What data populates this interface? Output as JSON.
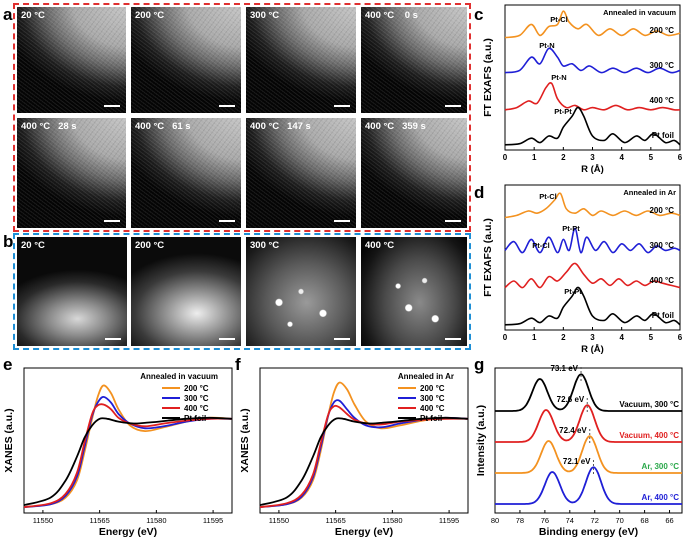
{
  "panels": {
    "a": "a",
    "b": "b",
    "c": "c",
    "d": "d",
    "e": "e",
    "f": "f",
    "g": "g"
  },
  "panel_a_labels": [
    "20 °C",
    "200 °C",
    "300 °C",
    "400 °C    0 s",
    "400 °C   28 s",
    "400 °C   61 s",
    "400 °C   147 s",
    "400 °C   359 s"
  ],
  "panel_b_labels": [
    "20 °C",
    "200 °C",
    "300 °C",
    "400 °C"
  ],
  "colors": {
    "orange": "#f39220",
    "blue": "#1f1fd6",
    "red": "#e02020",
    "black": "#000000",
    "green": "#2aa84a",
    "red_dash": "#e03030",
    "blue_dash": "#1d8fd6"
  },
  "chart_data": [
    {
      "id": "c",
      "type": "line",
      "title": "Annealed in vacuum",
      "xlabel": "R (Å)",
      "ylabel": "FT EXAFS (a.u.)",
      "xlim": [
        0,
        6
      ],
      "xticks": [
        "0",
        "1",
        "2",
        "3",
        "4",
        "5",
        "6"
      ],
      "series": [
        {
          "name": "200 °C",
          "color": "#f39220",
          "x": [
            0,
            0.5,
            0.9,
            1.2,
            1.5,
            1.8,
            2.0,
            2.2,
            2.5,
            2.8,
            3.2,
            3.6,
            4.0,
            4.4,
            4.8,
            5.2,
            5.6,
            6.0
          ],
          "y": [
            0.2,
            0.3,
            0.8,
            0.3,
            0.7,
            0.8,
            1.4,
            0.9,
            0.6,
            0.8,
            0.3,
            0.6,
            0.3,
            0.6,
            0.3,
            0.5,
            0.3,
            0.4
          ]
        },
        {
          "name": "300 °C",
          "color": "#1f1fd6",
          "x": [
            0,
            0.5,
            0.9,
            1.2,
            1.5,
            1.8,
            2.0,
            2.3,
            2.6,
            2.9,
            3.3,
            3.7,
            4.1,
            4.5,
            4.9,
            5.3,
            5.7,
            6.0
          ],
          "y": [
            0.2,
            0.3,
            0.9,
            0.6,
            1.3,
            0.9,
            0.5,
            0.6,
            0.3,
            0.5,
            0.2,
            0.4,
            0.2,
            0.4,
            0.2,
            0.4,
            0.2,
            0.3
          ]
        },
        {
          "name": "400 °C",
          "color": "#e02020",
          "x": [
            0,
            0.4,
            0.8,
            1.1,
            1.4,
            1.6,
            1.8,
            2.1,
            2.4,
            2.7,
            3.0,
            3.4,
            3.8,
            4.2,
            4.6,
            5.0,
            5.4,
            5.8,
            6.0
          ],
          "y": [
            0.1,
            0.2,
            0.5,
            0.4,
            1.1,
            1.3,
            0.6,
            0.2,
            0.3,
            0.1,
            0.2,
            0.1,
            0.3,
            0.1,
            0.2,
            0.1,
            0.2,
            0.1,
            0.1
          ]
        },
        {
          "name": "Pt foil",
          "color": "#000000",
          "x": [
            0,
            0.5,
            0.9,
            1.2,
            1.5,
            1.8,
            2.0,
            2.3,
            2.5,
            2.7,
            3.0,
            3.4,
            3.7,
            4.1,
            4.5,
            4.8,
            5.1,
            5.5,
            5.8,
            6.0
          ],
          "y": [
            0.1,
            0.15,
            0.4,
            0.2,
            0.5,
            0.4,
            0.9,
            1.4,
            1.8,
            1.4,
            0.5,
            0.3,
            0.6,
            0.2,
            0.5,
            0.3,
            0.6,
            0.2,
            0.3,
            0.1
          ]
        }
      ],
      "annotations": [
        "Pt-Cl",
        "Pt-N",
        "Pt-N",
        "Pt-Pt"
      ],
      "curve_labels": [
        "200 °C",
        "300 °C",
        "400 °C",
        "Pt foil"
      ]
    },
    {
      "id": "d",
      "type": "line",
      "title": "Annealed in Ar",
      "xlabel": "R (Å)",
      "ylabel": "FT EXAFS (a.u.)",
      "xlim": [
        0,
        6
      ],
      "xticks": [
        "0",
        "1",
        "2",
        "3",
        "4",
        "5",
        "6"
      ],
      "series": [
        {
          "name": "200 °C",
          "color": "#f39220",
          "x": [
            0,
            0.4,
            0.8,
            1.1,
            1.4,
            1.7,
            1.9,
            2.1,
            2.4,
            2.7,
            3.0,
            3.3,
            3.7,
            4.1,
            4.5,
            4.9,
            5.3,
            5.7,
            6.0
          ],
          "y": [
            0.2,
            0.3,
            0.5,
            0.4,
            0.6,
            1.0,
            1.3,
            0.6,
            0.4,
            0.6,
            0.3,
            0.5,
            0.3,
            0.5,
            0.3,
            0.5,
            0.3,
            0.4,
            0.3
          ]
        },
        {
          "name": "300 °C",
          "color": "#1f1fd6",
          "x": [
            0,
            0.3,
            0.6,
            0.9,
            1.2,
            1.5,
            1.8,
            2.0,
            2.2,
            2.4,
            2.6,
            2.8,
            3.1,
            3.4,
            3.7,
            4.0,
            4.3,
            4.6,
            4.9,
            5.2,
            5.5,
            5.8,
            6.0
          ],
          "y": [
            0.3,
            0.7,
            0.2,
            0.8,
            0.2,
            0.9,
            0.2,
            0.8,
            0.3,
            1.3,
            0.2,
            0.9,
            0.3,
            0.7,
            0.2,
            0.6,
            0.3,
            0.6,
            0.2,
            0.5,
            0.3,
            0.4,
            0.3
          ]
        },
        {
          "name": "400 °C",
          "color": "#e02020",
          "x": [
            0,
            0.3,
            0.6,
            0.9,
            1.2,
            1.5,
            1.8,
            2.1,
            2.4,
            2.7,
            3.0,
            3.3,
            3.6,
            3.9,
            4.2,
            4.5,
            4.8,
            5.1,
            5.4,
            5.7,
            6.0
          ],
          "y": [
            0.2,
            0.5,
            0.2,
            0.6,
            0.2,
            0.7,
            0.5,
            0.9,
            1.3,
            0.8,
            0.4,
            0.6,
            0.3,
            0.6,
            0.3,
            0.5,
            0.3,
            0.5,
            0.4,
            0.3,
            0.2
          ]
        },
        {
          "name": "Pt foil",
          "color": "#000000",
          "x": [
            0,
            0.5,
            0.9,
            1.2,
            1.5,
            1.8,
            2.0,
            2.3,
            2.5,
            2.7,
            3.0,
            3.4,
            3.7,
            4.1,
            4.5,
            4.8,
            5.1,
            5.5,
            5.8,
            6.0
          ],
          "y": [
            0.1,
            0.15,
            0.4,
            0.2,
            0.5,
            0.4,
            0.9,
            1.4,
            1.8,
            1.4,
            0.5,
            0.3,
            0.6,
            0.2,
            0.5,
            0.3,
            0.6,
            0.2,
            0.3,
            0.1
          ]
        }
      ],
      "annotations": [
        "Pt-Cl",
        "Pt-Cl",
        "Pt-Pt",
        "Pt-Pt"
      ],
      "curve_labels": [
        "200 °C",
        "300 °C",
        "400 °C",
        "Pt foil"
      ]
    },
    {
      "id": "e",
      "type": "line",
      "title": "Annealed in vacuum",
      "xlabel": "Energy (eV)",
      "ylabel": "XANES (a.u.)",
      "xlim": [
        11545,
        11600
      ],
      "xticks": [
        "11550",
        "11565",
        "11580",
        "11595"
      ],
      "legend": [
        "200 °C",
        "300 °C",
        "400 °C",
        "Pt foil"
      ],
      "series": [
        {
          "name": "200 °C",
          "color": "#f39220",
          "x": [
            11545,
            11552,
            11556,
            11559,
            11561,
            11563,
            11564.5,
            11566,
            11568,
            11570,
            11573,
            11577,
            11582,
            11588,
            11594,
            11600
          ],
          "y": [
            0.02,
            0.05,
            0.12,
            0.3,
            0.6,
            0.95,
            1.18,
            1.3,
            1.22,
            1.05,
            0.88,
            0.82,
            0.86,
            0.92,
            0.96,
            0.95
          ]
        },
        {
          "name": "300 °C",
          "color": "#1f1fd6",
          "x": [
            11545,
            11552,
            11556,
            11559,
            11561,
            11563,
            11564.5,
            11566,
            11568,
            11570,
            11573,
            11577,
            11582,
            11588,
            11594,
            11600
          ],
          "y": [
            0.02,
            0.05,
            0.14,
            0.34,
            0.65,
            0.98,
            1.12,
            1.18,
            1.12,
            1.0,
            0.9,
            0.85,
            0.87,
            0.92,
            0.95,
            0.95
          ]
        },
        {
          "name": "400 °C",
          "color": "#e02020",
          "x": [
            11545,
            11552,
            11556,
            11559,
            11561,
            11563,
            11564.5,
            11566,
            11568,
            11570,
            11573,
            11577,
            11582,
            11588,
            11594,
            11600
          ],
          "y": [
            0.02,
            0.06,
            0.16,
            0.38,
            0.7,
            1.0,
            1.09,
            1.1,
            1.05,
            0.96,
            0.9,
            0.87,
            0.9,
            0.93,
            0.95,
            0.95
          ]
        },
        {
          "name": "Pt foil",
          "color": "#000000",
          "x": [
            11545,
            11552,
            11556,
            11559,
            11561,
            11563,
            11565,
            11567,
            11570,
            11574,
            11578,
            11583,
            11588,
            11594,
            11600
          ],
          "y": [
            0.04,
            0.12,
            0.3,
            0.55,
            0.75,
            0.88,
            0.95,
            0.95,
            0.92,
            0.9,
            0.91,
            0.93,
            0.95,
            0.96,
            0.95
          ]
        }
      ]
    },
    {
      "id": "f",
      "type": "line",
      "title": "Annealed in Ar",
      "xlabel": "Energy (eV)",
      "ylabel": "XANES (a.u.)",
      "xlim": [
        11545,
        11600
      ],
      "xticks": [
        "11550",
        "11565",
        "11580",
        "11595"
      ],
      "legend": [
        "200 °C",
        "300 °C",
        "400 °C",
        "Pt foil"
      ],
      "series": [
        {
          "name": "200 °C",
          "color": "#f39220",
          "x": [
            11545,
            11552,
            11556,
            11559,
            11561,
            11563,
            11564.5,
            11566,
            11568,
            11570,
            11573,
            11577,
            11582,
            11588,
            11594,
            11600
          ],
          "y": [
            0.02,
            0.05,
            0.12,
            0.3,
            0.6,
            0.98,
            1.22,
            1.33,
            1.26,
            1.1,
            0.92,
            0.85,
            0.88,
            0.93,
            0.96,
            0.95
          ]
        },
        {
          "name": "300 °C",
          "color": "#1f1fd6",
          "x": [
            11545,
            11552,
            11556,
            11559,
            11561,
            11563,
            11564.5,
            11566,
            11568,
            11570,
            11573,
            11577,
            11582,
            11588,
            11594,
            11600
          ],
          "y": [
            0.02,
            0.05,
            0.13,
            0.33,
            0.64,
            0.98,
            1.12,
            1.14,
            1.05,
            0.96,
            0.88,
            0.86,
            0.9,
            0.94,
            0.96,
            0.95
          ]
        },
        {
          "name": "400 °C",
          "color": "#e02020",
          "x": [
            11545,
            11552,
            11556,
            11559,
            11561,
            11563,
            11564.5,
            11566,
            11568,
            11570,
            11573,
            11577,
            11582,
            11588,
            11594,
            11600
          ],
          "y": [
            0.02,
            0.06,
            0.15,
            0.36,
            0.68,
            0.99,
            1.08,
            1.07,
            1.0,
            0.94,
            0.9,
            0.89,
            0.92,
            0.94,
            0.95,
            0.95
          ]
        },
        {
          "name": "Pt foil",
          "color": "#000000",
          "x": [
            11545,
            11552,
            11556,
            11559,
            11561,
            11563,
            11565,
            11567,
            11570,
            11574,
            11578,
            11583,
            11588,
            11594,
            11600
          ],
          "y": [
            0.04,
            0.12,
            0.3,
            0.55,
            0.75,
            0.88,
            0.95,
            0.95,
            0.92,
            0.9,
            0.91,
            0.93,
            0.95,
            0.96,
            0.95
          ]
        }
      ]
    },
    {
      "id": "g",
      "type": "line",
      "xlabel": "Binding energy (eV)",
      "ylabel": "Intensity (a.u.)",
      "xlim": [
        80,
        65
      ],
      "xticks": [
        "80",
        "78",
        "76",
        "74",
        "72",
        "70",
        "68",
        "66"
      ],
      "series": [
        {
          "name": "Vacuum, 300 °C",
          "color": "#000000",
          "peak": "73.1 eV",
          "p1": 76.4,
          "p2": 73.1
        },
        {
          "name": "Vacuum, 400 °C",
          "color": "#e02020",
          "peak": "72.6 eV",
          "p1": 75.9,
          "p2": 72.6
        },
        {
          "name": "Ar, 300 °C",
          "color": "#f39220",
          "peak": "72.4 eV",
          "p1": 75.7,
          "p2": 72.4
        },
        {
          "name": "Ar, 400 °C",
          "color": "#1f1fd6",
          "peak": "72.1 eV",
          "p1": 75.4,
          "p2": 72.1
        }
      ],
      "series_label_colors": [
        "#000000",
        "#e02020",
        "#2aa84a",
        "#1f1fd6"
      ]
    }
  ]
}
